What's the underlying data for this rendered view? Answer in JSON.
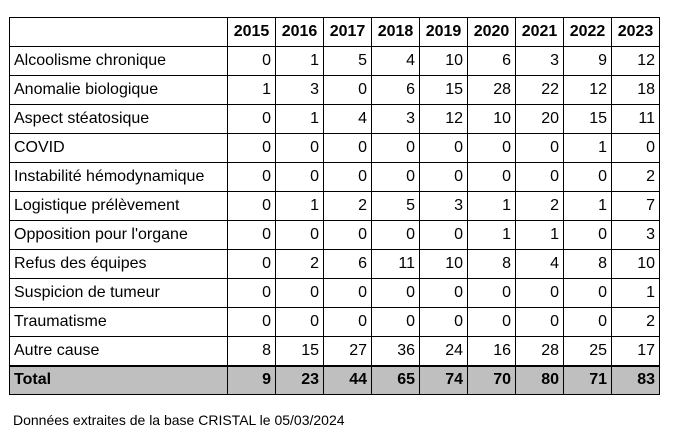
{
  "table": {
    "years": [
      "2015",
      "2016",
      "2017",
      "2018",
      "2019",
      "2020",
      "2021",
      "2022",
      "2023"
    ],
    "rows": [
      {
        "label": "Alcoolisme chronique",
        "values": [
          "0",
          "1",
          "5",
          "4",
          "10",
          "6",
          "3",
          "9",
          "12"
        ]
      },
      {
        "label": "Anomalie biologique",
        "values": [
          "1",
          "3",
          "0",
          "6",
          "15",
          "28",
          "22",
          "12",
          "18"
        ]
      },
      {
        "label": "Aspect stéatosique",
        "values": [
          "0",
          "1",
          "4",
          "3",
          "12",
          "10",
          "20",
          "15",
          "11"
        ]
      },
      {
        "label": "COVID",
        "values": [
          "0",
          "0",
          "0",
          "0",
          "0",
          "0",
          "0",
          "1",
          "0"
        ]
      },
      {
        "label": "Instabilité hémodynamique",
        "values": [
          "0",
          "0",
          "0",
          "0",
          "0",
          "0",
          "0",
          "0",
          "2"
        ]
      },
      {
        "label": "Logistique prélèvement",
        "values": [
          "0",
          "1",
          "2",
          "5",
          "3",
          "1",
          "2",
          "1",
          "7"
        ]
      },
      {
        "label": "Opposition pour l'organe",
        "values": [
          "0",
          "0",
          "0",
          "0",
          "0",
          "1",
          "1",
          "0",
          "3"
        ]
      },
      {
        "label": "Refus des équipes",
        "values": [
          "0",
          "2",
          "6",
          "11",
          "10",
          "8",
          "4",
          "8",
          "10"
        ]
      },
      {
        "label": "Suspicion de tumeur",
        "values": [
          "0",
          "0",
          "0",
          "0",
          "0",
          "0",
          "0",
          "0",
          "1"
        ]
      },
      {
        "label": "Traumatisme",
        "values": [
          "0",
          "0",
          "0",
          "0",
          "0",
          "0",
          "0",
          "0",
          "2"
        ]
      },
      {
        "label": "Autre cause",
        "values": [
          "8",
          "15",
          "27",
          "36",
          "24",
          "16",
          "28",
          "25",
          "17"
        ]
      }
    ],
    "total": {
      "label": "Total",
      "values": [
        "9",
        "23",
        "44",
        "65",
        "74",
        "70",
        "80",
        "71",
        "83"
      ]
    }
  },
  "footnote": "Données extraites de la base CRISTAL le 05/03/2024"
}
